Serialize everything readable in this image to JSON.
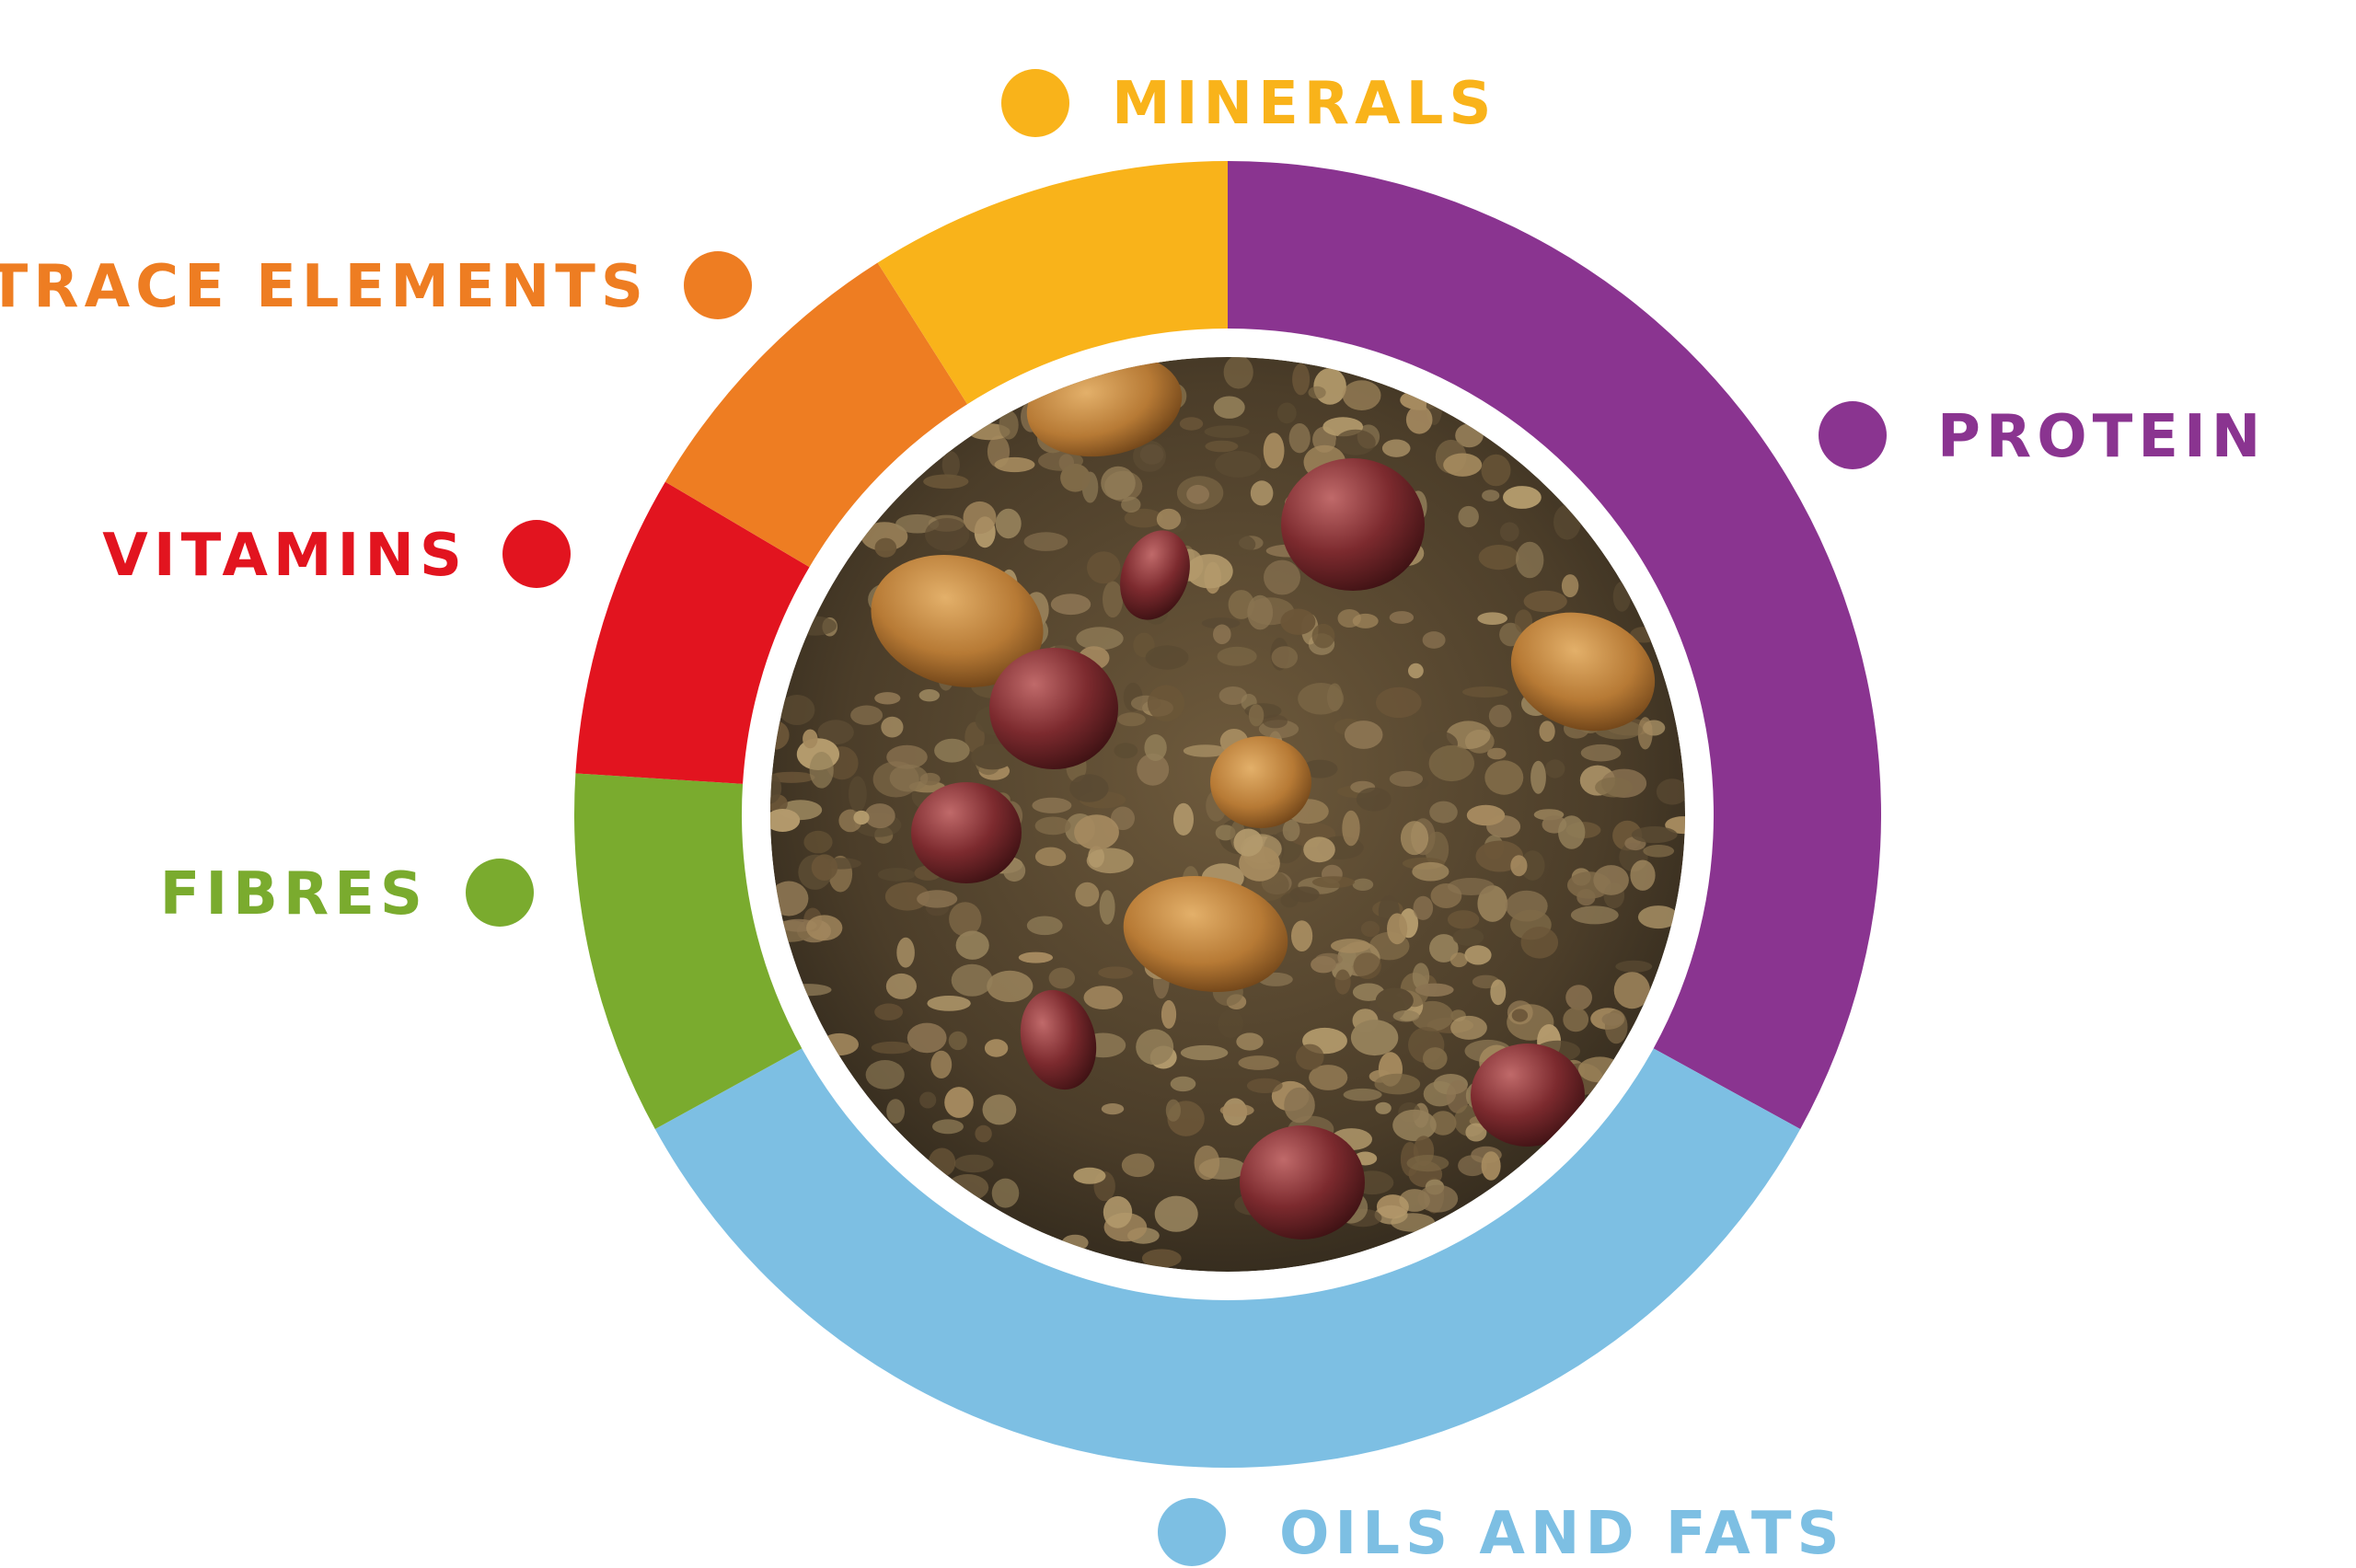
{
  "chart_data": {
    "type": "pie",
    "variant": "donut",
    "categories": [
      "PROTEIN",
      "OILS AND FATS",
      "FIBRES",
      "VITAMINS",
      "TRACE ELEMENTS",
      "MINERALS"
    ],
    "values": [
      33,
      34,
      9,
      7.5,
      7.5,
      9
    ],
    "colors": [
      "#8a3490",
      "#7dbfe3",
      "#7aab2e",
      "#e2141f",
      "#ee7d22",
      "#f9b31a"
    ],
    "start_angle_deg": 0,
    "direction": "clockwise",
    "center_image": "granola-muesli-photo",
    "legend": [
      {
        "label": "MINERALS",
        "color": "#f9b31a"
      },
      {
        "label": "TRACE ELEMENTS",
        "color": "#ee7d22"
      },
      {
        "label": "PROTEIN",
        "color": "#8a3490"
      },
      {
        "label": "VITAMINS",
        "color": "#e2141f"
      },
      {
        "label": "FIBRES",
        "color": "#7aab2e"
      },
      {
        "label": "OILS AND FATS",
        "color": "#7dbfe3"
      }
    ]
  }
}
